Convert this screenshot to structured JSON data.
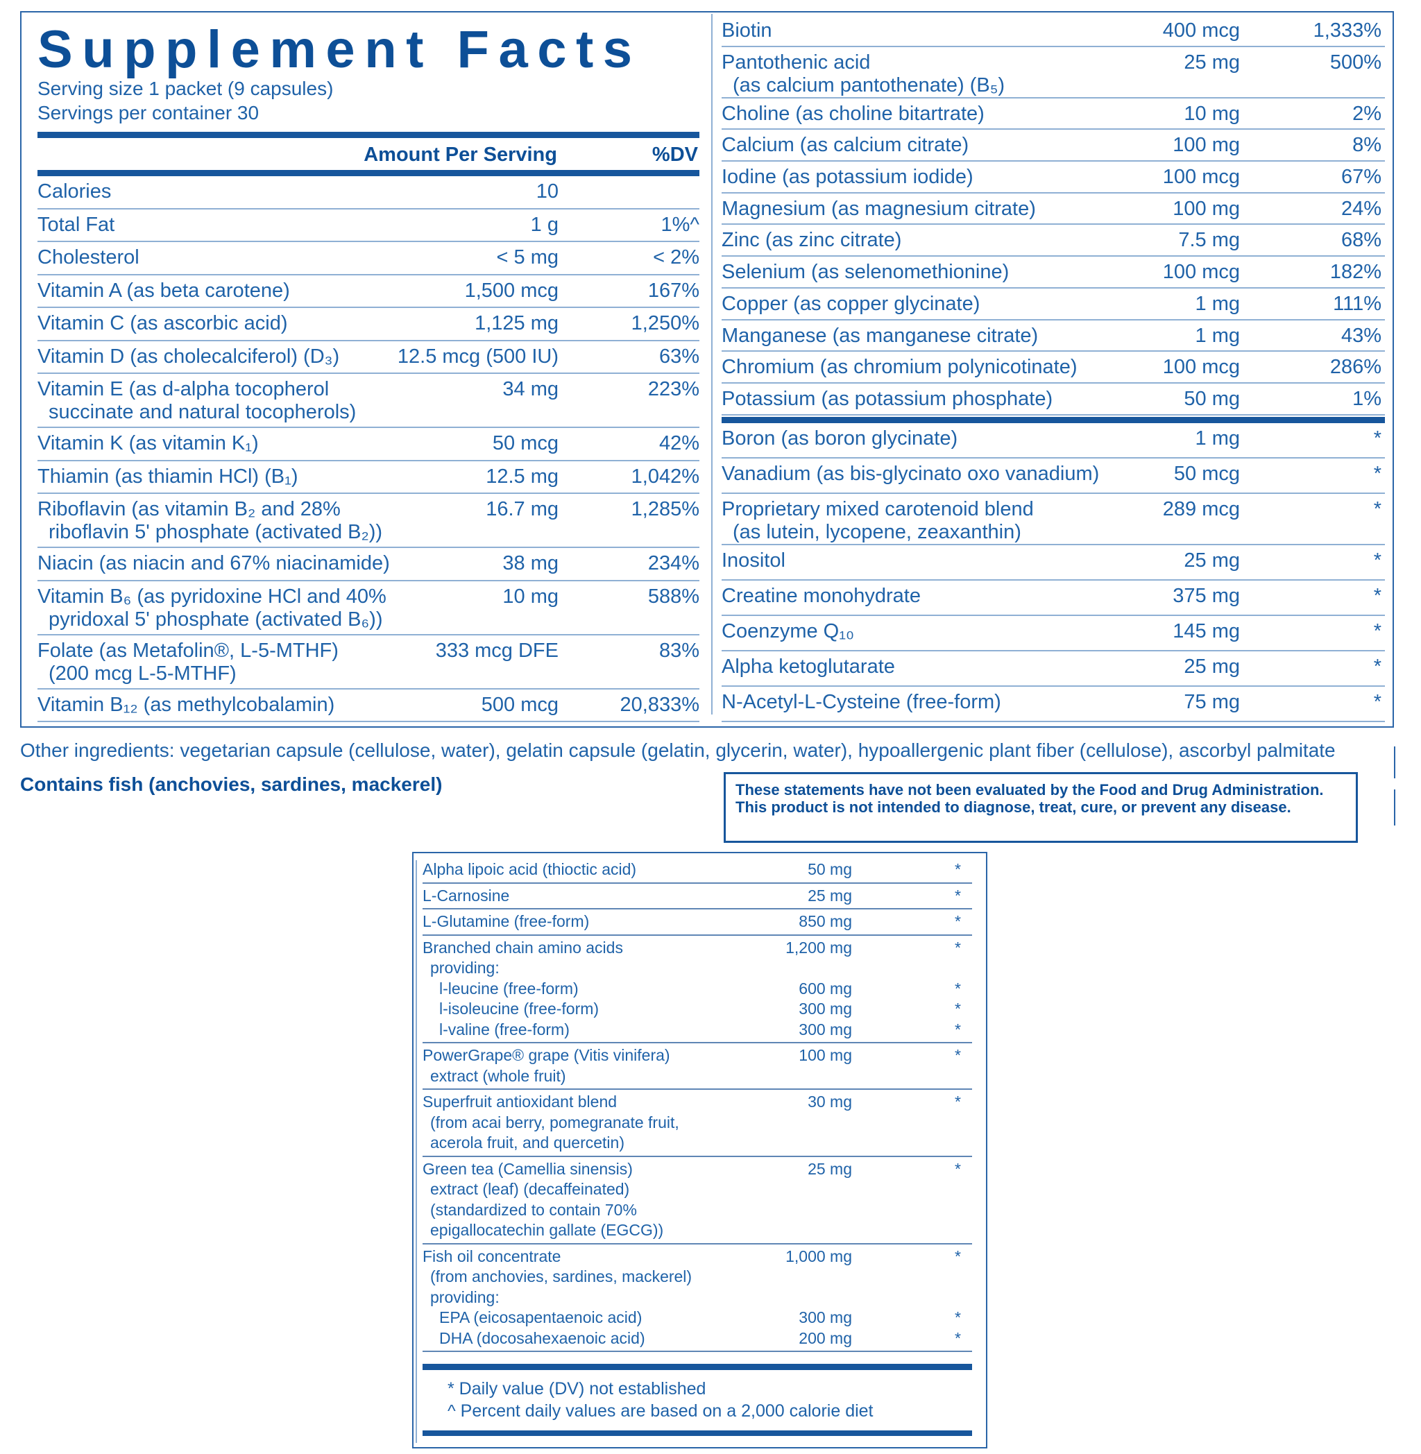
{
  "header": {
    "title": "Supplement Facts",
    "serving_size": "Serving size  1 packet (9 capsules)",
    "servings_per_container": "Servings per container  30"
  },
  "table_header": {
    "amount": "Amount Per Serving",
    "dv": "%DV"
  },
  "left_rows": [
    {
      "lines": [
        "Calories"
      ],
      "amount": "10"
    },
    {
      "lines": [
        "Total Fat"
      ],
      "amount": "1 g",
      "dv": "1%^"
    },
    {
      "lines": [
        "Cholesterol"
      ],
      "amount": "< 5 mg",
      "dv": "< 2%"
    },
    {
      "lines": [
        "Vitamin A (as beta carotene)"
      ],
      "amount": "1,500 mcg",
      "dv": "167%"
    },
    {
      "lines": [
        "Vitamin C (as ascorbic acid)"
      ],
      "amount": "1,125 mg",
      "dv": "1,250%"
    },
    {
      "lines": [
        "Vitamin D (as cholecalciferol) (D₃)"
      ],
      "amount": "12.5 mcg (500 IU)",
      "dv": "63%"
    },
    {
      "lines": [
        "Vitamin E (as d-alpha tocopherol",
        "succinate and natural tocopherols)"
      ],
      "amount": "34 mg",
      "dv": "223%"
    },
    {
      "lines": [
        "Vitamin K (as vitamin K₁)"
      ],
      "amount": "50 mcg",
      "dv": "42%"
    },
    {
      "lines": [
        "Thiamin (as thiamin HCl) (B₁)"
      ],
      "amount": "12.5 mg",
      "dv": "1,042%"
    },
    {
      "lines": [
        "Riboflavin (as vitamin B₂ and 28%",
        "riboflavin 5' phosphate (activated B₂))"
      ],
      "amount": "16.7 mg",
      "dv": "1,285%"
    },
    {
      "lines": [
        "Niacin (as niacin and 67% niacinamide)"
      ],
      "amount": "38 mg",
      "dv": "234%"
    },
    {
      "lines": [
        "Vitamin B₆ (as pyridoxine HCl and 40%",
        "pyridoxal 5' phosphate (activated B₆))"
      ],
      "amount": "10 mg",
      "dv": "588%"
    },
    {
      "lines": [
        "Folate (as Metafolin®, L-5-MTHF)",
        "(200 mcg L-5-MTHF)"
      ],
      "amount": "333 mcg DFE",
      "dv": "83%"
    },
    {
      "lines": [
        "Vitamin B₁₂ (as methylcobalamin)"
      ],
      "amount": "500 mcg",
      "dv": "20,833%"
    }
  ],
  "right_sections": [
    [
      {
        "lines": [
          "Biotin"
        ],
        "amount": "400 mcg",
        "dv": "1,333%"
      },
      {
        "lines": [
          "Pantothenic acid",
          "(as calcium pantothenate) (B₅)"
        ],
        "amount": "25 mg",
        "dv": "500%"
      },
      {
        "lines": [
          "Choline (as choline bitartrate)"
        ],
        "amount": "10 mg",
        "dv": "2%"
      },
      {
        "lines": [
          "Calcium (as calcium citrate)"
        ],
        "amount": "100 mg",
        "dv": "8%"
      },
      {
        "lines": [
          "Iodine (as potassium iodide)"
        ],
        "amount": "100 mcg",
        "dv": "67%"
      },
      {
        "lines": [
          "Magnesium (as magnesium citrate)"
        ],
        "amount": "100 mg",
        "dv": "24%"
      },
      {
        "lines": [
          "Zinc (as zinc citrate)"
        ],
        "amount": "7.5 mg",
        "dv": "68%"
      },
      {
        "lines": [
          "Selenium (as selenomethionine)"
        ],
        "amount": "100 mcg",
        "dv": "182%"
      },
      {
        "lines": [
          "Copper (as copper glycinate)"
        ],
        "amount": "1 mg",
        "dv": "111%"
      },
      {
        "lines": [
          "Manganese (as manganese citrate)"
        ],
        "amount": "1 mg",
        "dv": "43%"
      },
      {
        "lines": [
          "Chromium (as chromium polynicotinate)"
        ],
        "amount": "100 mcg",
        "dv": "286%"
      },
      {
        "lines": [
          "Potassium (as potassium phosphate)"
        ],
        "amount": "50 mg",
        "dv": "1%"
      }
    ],
    [
      {
        "lines": [
          "Boron (as boron glycinate)"
        ],
        "amount": "1 mg",
        "dv": "*"
      },
      {
        "lines": [
          "Vanadium (as bis-glycinato oxo vanadium)"
        ],
        "amount": "50 mcg",
        "dv": "*"
      },
      {
        "lines": [
          "Proprietary mixed carotenoid blend",
          "(as lutein, lycopene, zeaxanthin)"
        ],
        "amount": "289 mcg",
        "dv": "*"
      },
      {
        "lines": [
          "Inositol"
        ],
        "amount": "25 mg",
        "dv": "*"
      },
      {
        "lines": [
          "Creatine monohydrate"
        ],
        "amount": "375 mg",
        "dv": "*"
      },
      {
        "lines": [
          "Coenzyme Q₁₀"
        ],
        "amount": "145 mg",
        "dv": "*"
      },
      {
        "lines": [
          "Alpha ketoglutarate"
        ],
        "amount": "25 mg",
        "dv": "*"
      },
      {
        "lines": [
          "N-Acetyl-L-Cysteine (free-form)"
        ],
        "amount": "75 mg",
        "dv": "*"
      }
    ]
  ],
  "other_ingredients": "Other ingredients: vegetarian capsule (cellulose, water), gelatin capsule (gelatin, glycerin, water), hypoallergenic plant fiber (cellulose), ascorbyl palmitate",
  "allergen": "Contains fish (anchovies, sardines, mackerel)",
  "disclaimer": "These statements have not been evaluated by the Food and Drug Administration. This product is not intended to diagnose, treat, cure, or prevent any disease.",
  "blend_rows": [
    {
      "lines": [
        {
          "text": "Alpha lipoic acid (thioctic acid)",
          "amount": "50 mg",
          "dv": "*"
        }
      ]
    },
    {
      "lines": [
        {
          "text": "L-Carnosine",
          "amount": "25 mg",
          "dv": "*"
        }
      ]
    },
    {
      "lines": [
        {
          "text": "L-Glutamine (free-form)",
          "amount": "850 mg",
          "dv": "*"
        }
      ]
    },
    {
      "lines": [
        {
          "text": "Branched chain amino acids",
          "amount": "1,200 mg",
          "dv": "*"
        },
        {
          "text": "providing:"
        },
        {
          "text": "l-leucine (free-form)",
          "amount": "600 mg",
          "dv": "*"
        },
        {
          "text": "l-isoleucine (free-form)",
          "amount": "300 mg",
          "dv": "*"
        },
        {
          "text": "l-valine (free-form)",
          "amount": "300 mg",
          "dv": "*"
        }
      ]
    },
    {
      "lines": [
        {
          "text": "PowerGrape® grape (Vitis vinifera)",
          "amount": "100 mg",
          "dv": "*"
        },
        {
          "text": "extract (whole fruit)"
        }
      ]
    },
    {
      "lines": [
        {
          "text": "Superfruit antioxidant blend",
          "amount": "30 mg",
          "dv": "*"
        },
        {
          "text": "(from acai berry, pomegranate fruit,"
        },
        {
          "text": "acerola fruit, and quercetin)"
        }
      ]
    },
    {
      "lines": [
        {
          "text": "Green tea (Camellia sinensis)",
          "amount": "25 mg",
          "dv": "*"
        },
        {
          "text": "extract (leaf) (decaffeinated)"
        },
        {
          "text": "(standardized to contain 70%"
        },
        {
          "text": "epigallocatechin gallate (EGCG))"
        }
      ]
    },
    {
      "lines": [
        {
          "text": "Fish oil concentrate",
          "amount": "1,000 mg",
          "dv": "*"
        },
        {
          "text": "(from anchovies, sardines, mackerel)"
        },
        {
          "text": "providing:"
        },
        {
          "text": "EPA (eicosapentaenoic acid)",
          "amount": "300 mg",
          "dv": "*"
        },
        {
          "text": "DHA (docosahexaenoic acid)",
          "amount": "200 mg",
          "dv": "*"
        }
      ]
    }
  ],
  "footnotes": [
    "* Daily value (DV) not established",
    "^ Percent daily values are based on a 2,000 calorie diet"
  ]
}
